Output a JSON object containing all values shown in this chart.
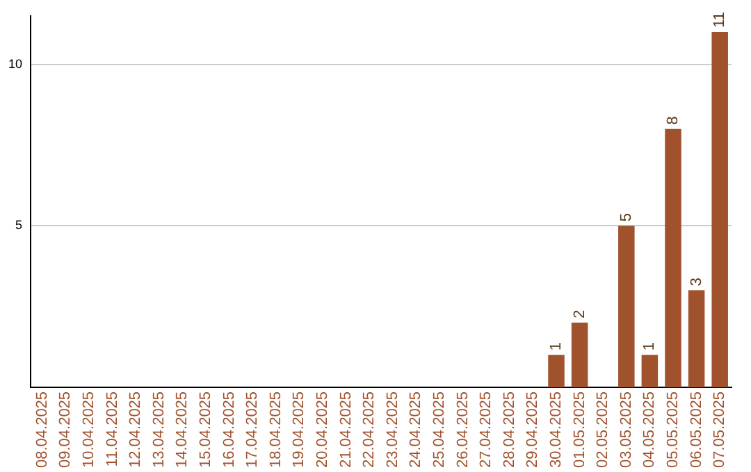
{
  "chart_data": {
    "type": "bar",
    "categories": [
      "08.04.2025",
      "09.04.2025",
      "10.04.2025",
      "11.04.2025",
      "12.04.2025",
      "13.04.2025",
      "14.04.2025",
      "15.04.2025",
      "16.04.2025",
      "17.04.2025",
      "18.04.2025",
      "19.04.2025",
      "20.04.2025",
      "21.04.2025",
      "22.04.2025",
      "23.04.2025",
      "24.04.2025",
      "25.04.2025",
      "26.04.2025",
      "27.04.2025",
      "28.04.2025",
      "29.04.2025",
      "30.04.2025",
      "01.05.2025",
      "02.05.2025",
      "03.05.2025",
      "04.05.2025",
      "05.05.2025",
      "06.05.2025",
      "07.05.2025"
    ],
    "values": [
      0,
      0,
      0,
      0,
      0,
      0,
      0,
      0,
      0,
      0,
      0,
      0,
      0,
      0,
      0,
      0,
      0,
      0,
      0,
      0,
      0,
      0,
      1,
      2,
      0,
      5,
      1,
      8,
      3,
      11
    ],
    "value_labels": [
      null,
      null,
      null,
      null,
      null,
      null,
      null,
      null,
      null,
      null,
      null,
      null,
      null,
      null,
      null,
      null,
      null,
      null,
      null,
      null,
      null,
      null,
      "1",
      "2",
      null,
      "5",
      "1",
      "8",
      "3",
      "11"
    ],
    "color": "#a0522d",
    "ylim": [
      0,
      11.5
    ],
    "yticks": [
      5,
      10
    ],
    "grid": "y",
    "legend": false
  }
}
